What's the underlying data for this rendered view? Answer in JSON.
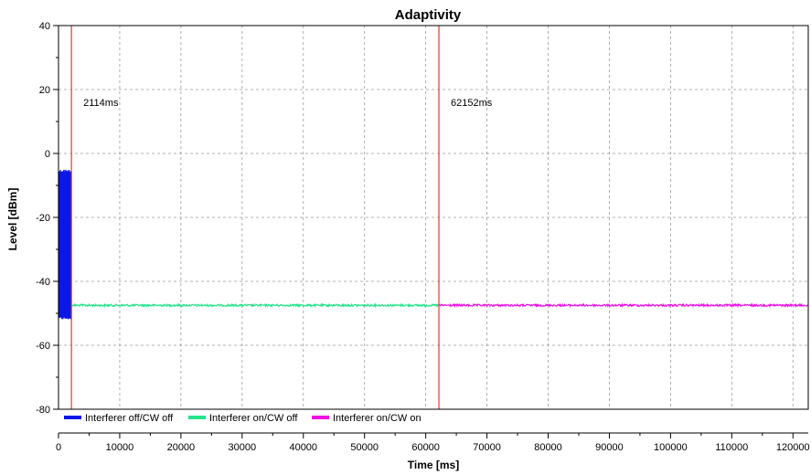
{
  "chart_data": {
    "type": "line",
    "title": "Adaptivity",
    "xlabel": "Time [ms]",
    "ylabel": "Level [dBm]",
    "xlim": [
      0,
      122500
    ],
    "ylim": [
      -80,
      40
    ],
    "xticks": [
      0,
      10000,
      20000,
      30000,
      40000,
      50000,
      60000,
      70000,
      80000,
      90000,
      100000,
      110000,
      120000
    ],
    "yticks": [
      40,
      20,
      0,
      -20,
      -40,
      -60,
      -80
    ],
    "grid": true,
    "legend_position": "bottom",
    "markers": [
      {
        "x": 2114,
        "label": "2114ms",
        "color": "#e8382e"
      },
      {
        "x": 62152,
        "label": "62152ms",
        "color": "#e8382e"
      }
    ],
    "series": [
      {
        "name": "Interferer off/CW off",
        "color": "#0a17e6",
        "x_range": [
          0,
          2114
        ],
        "y_range": [
          -52,
          -5
        ],
        "style": "noise-band"
      },
      {
        "name": "Interferer on/CW off",
        "color": "#22e58a",
        "x_range": [
          2114,
          62152
        ],
        "y_mean": -47.5,
        "style": "noise-line"
      },
      {
        "name": "Interferer on/CW on",
        "color": "#ee10e6",
        "x_range": [
          62152,
          122500
        ],
        "y_mean": -47.5,
        "style": "noise-line"
      }
    ]
  }
}
